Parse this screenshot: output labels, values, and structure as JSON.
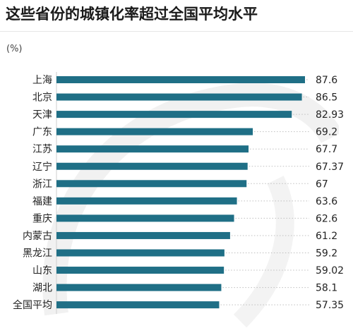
{
  "header": {
    "title": "这些省份的城镇化率超过全国平均水平",
    "unit": "(%)"
  },
  "colors": {
    "bar": "#1f6f86",
    "axis": "#cfcfcf",
    "dots": "#bfbfbf"
  },
  "chart_data": {
    "type": "bar",
    "orientation": "horizontal",
    "title": "这些省份的城镇化率超过全国平均水平",
    "ylabel": "(%)",
    "categories": [
      "上海",
      "北京",
      "天津",
      "广东",
      "江苏",
      "辽宁",
      "浙江",
      "福建",
      "重庆",
      "内蒙古",
      "黑龙江",
      "山东",
      "湖北",
      "全国平均"
    ],
    "values": [
      87.6,
      86.5,
      82.93,
      69.2,
      67.7,
      67.37,
      67,
      63.6,
      62.6,
      61.2,
      59.2,
      59.02,
      58.1,
      57.35
    ],
    "value_labels": [
      "87.6",
      "86.5",
      "82.93",
      "69.2",
      "67.7",
      "67.37",
      "67",
      "63.6",
      "62.6",
      "61.2",
      "59.2",
      "59.02",
      "58.1",
      "57.35"
    ],
    "xlim": [
      0,
      87.6
    ],
    "grid": false,
    "legend": "none"
  }
}
